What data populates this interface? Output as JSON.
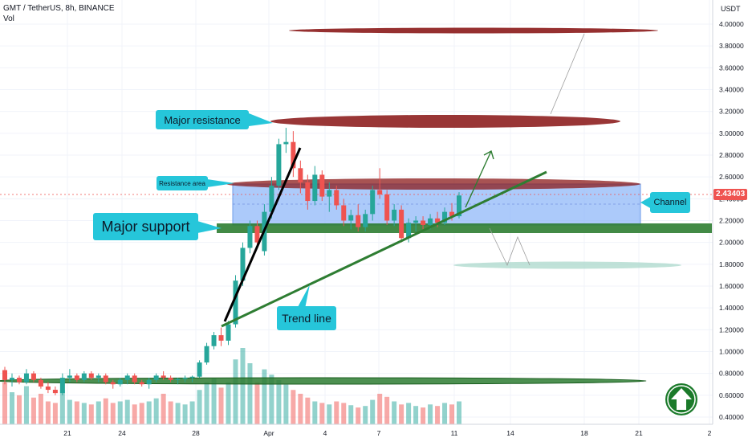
{
  "header": {
    "symbol_line": "GMT / TetherUS, 8h, BINANCE",
    "volume_label": "Vol"
  },
  "axis": {
    "currency": "USDT",
    "last_price_label": "2.43403"
  },
  "annotations": {
    "major_resistance": "Major resistance",
    "resistance_area": "Resistance area",
    "major_support": "Major support",
    "trend_line": "Trend line",
    "channel": "Channel"
  },
  "colors": {
    "up": "#26a69a",
    "down": "#ef5350",
    "resistance": "#8b1a1a",
    "support": "#2e7d32",
    "channel_fill": "#90b8f8",
    "callout": "#26c6da",
    "trend": "#2e7d32"
  },
  "icons": {
    "badge": "green-up-arrow-icon"
  },
  "chart_data": {
    "type": "candlestick",
    "y_ticks": [
      "4.00000",
      "3.80000",
      "3.60000",
      "3.40000",
      "3.20000",
      "3.00000",
      "2.80000",
      "2.60000",
      "2.40000",
      "2.20000",
      "2.00000",
      "1.80000",
      "1.60000",
      "1.40000",
      "1.20000",
      "1.00000",
      "0.80000",
      "0.60000",
      "0.40000"
    ],
    "x_ticks": [
      "21",
      "24",
      "28",
      "Apr",
      "4",
      "7",
      "11",
      "14",
      "18",
      "21",
      "2"
    ],
    "ylim": [
      0.35,
      4.15
    ],
    "last_price": 2.43403,
    "levels": {
      "major_resistance": 3.12,
      "target": 3.95,
      "resistance_area_low": 2.34,
      "resistance_area_high": 2.55,
      "major_support": 2.15,
      "bottom_support": 0.72,
      "alt_target": 1.78
    },
    "candles": [
      [
        0.83,
        0.86,
        0.7,
        0.74
      ],
      [
        0.74,
        0.8,
        0.68,
        0.76
      ],
      [
        0.76,
        0.78,
        0.7,
        0.72
      ],
      [
        0.72,
        0.84,
        0.7,
        0.8
      ],
      [
        0.8,
        0.82,
        0.72,
        0.74
      ],
      [
        0.74,
        0.76,
        0.66,
        0.68
      ],
      [
        0.68,
        0.72,
        0.62,
        0.65
      ],
      [
        0.65,
        0.68,
        0.6,
        0.62
      ],
      [
        0.62,
        0.8,
        0.6,
        0.76
      ],
      [
        0.76,
        0.84,
        0.72,
        0.78
      ],
      [
        0.78,
        0.8,
        0.72,
        0.74
      ],
      [
        0.74,
        0.82,
        0.72,
        0.8
      ],
      [
        0.8,
        0.82,
        0.74,
        0.76
      ],
      [
        0.76,
        0.8,
        0.72,
        0.78
      ],
      [
        0.78,
        0.8,
        0.7,
        0.72
      ],
      [
        0.72,
        0.74,
        0.66,
        0.7
      ],
      [
        0.7,
        0.76,
        0.68,
        0.74
      ],
      [
        0.74,
        0.8,
        0.7,
        0.78
      ],
      [
        0.78,
        0.8,
        0.7,
        0.72
      ],
      [
        0.72,
        0.74,
        0.68,
        0.7
      ],
      [
        0.7,
        0.76,
        0.66,
        0.74
      ],
      [
        0.74,
        0.8,
        0.72,
        0.78
      ],
      [
        0.78,
        0.82,
        0.74,
        0.76
      ],
      [
        0.76,
        0.78,
        0.72,
        0.74
      ],
      [
        0.74,
        0.76,
        0.7,
        0.75
      ],
      [
        0.75,
        0.78,
        0.72,
        0.76
      ],
      [
        0.76,
        0.78,
        0.72,
        0.77
      ],
      [
        0.77,
        0.92,
        0.76,
        0.9
      ],
      [
        0.9,
        1.08,
        0.88,
        1.05
      ],
      [
        1.05,
        1.18,
        1.02,
        1.15
      ],
      [
        1.15,
        1.22,
        1.05,
        1.1
      ],
      [
        1.1,
        1.28,
        1.06,
        1.25
      ],
      [
        1.25,
        1.7,
        1.22,
        1.65
      ],
      [
        1.65,
        2.0,
        1.6,
        1.95
      ],
      [
        1.95,
        2.2,
        1.9,
        2.15
      ],
      [
        2.15,
        2.2,
        1.95,
        2.0
      ],
      [
        1.92,
        2.35,
        1.88,
        2.28
      ],
      [
        2.28,
        2.6,
        2.22,
        2.52
      ],
      [
        2.52,
        2.95,
        2.48,
        2.9
      ],
      [
        2.9,
        3.05,
        2.82,
        2.92
      ],
      [
        2.92,
        3.02,
        2.6,
        2.68
      ],
      [
        2.68,
        2.75,
        2.45,
        2.55
      ],
      [
        2.55,
        2.62,
        2.3,
        2.38
      ],
      [
        2.38,
        2.7,
        2.34,
        2.62
      ],
      [
        2.62,
        2.66,
        2.38,
        2.42
      ],
      [
        2.42,
        2.55,
        2.28,
        2.48
      ],
      [
        2.48,
        2.52,
        2.3,
        2.34
      ],
      [
        2.34,
        2.4,
        2.15,
        2.2
      ],
      [
        2.2,
        2.3,
        2.12,
        2.25
      ],
      [
        2.25,
        2.35,
        2.1,
        2.14
      ],
      [
        2.14,
        2.3,
        2.1,
        2.26
      ],
      [
        2.26,
        2.52,
        2.2,
        2.48
      ],
      [
        2.48,
        2.68,
        2.4,
        2.44
      ],
      [
        2.44,
        2.48,
        2.16,
        2.2
      ],
      [
        2.2,
        2.35,
        2.15,
        2.3
      ],
      [
        2.3,
        2.34,
        2.0,
        2.04
      ],
      [
        2.04,
        2.22,
        2.0,
        2.18
      ],
      [
        2.18,
        2.24,
        2.1,
        2.2
      ],
      [
        2.2,
        2.24,
        2.12,
        2.16
      ],
      [
        2.16,
        2.26,
        2.12,
        2.22
      ],
      [
        2.22,
        2.28,
        2.14,
        2.18
      ],
      [
        2.18,
        2.32,
        2.16,
        2.28
      ],
      [
        2.28,
        2.36,
        2.2,
        2.24
      ],
      [
        2.24,
        2.46,
        2.22,
        2.43
      ]
    ],
    "volumes": [
      0.55,
      0.42,
      0.38,
      0.5,
      0.35,
      0.4,
      0.3,
      0.28,
      0.45,
      0.32,
      0.3,
      0.28,
      0.26,
      0.3,
      0.34,
      0.28,
      0.3,
      0.32,
      0.26,
      0.28,
      0.3,
      0.34,
      0.4,
      0.3,
      0.28,
      0.26,
      0.3,
      0.45,
      0.55,
      0.6,
      0.48,
      0.55,
      0.85,
      1.0,
      0.8,
      0.55,
      0.72,
      0.65,
      0.58,
      0.52,
      0.45,
      0.4,
      0.35,
      0.3,
      0.28,
      0.26,
      0.3,
      0.28,
      0.25,
      0.22,
      0.24,
      0.32,
      0.4,
      0.36,
      0.3,
      0.26,
      0.28,
      0.24,
      0.22,
      0.26,
      0.24,
      0.28,
      0.26,
      0.3
    ]
  }
}
